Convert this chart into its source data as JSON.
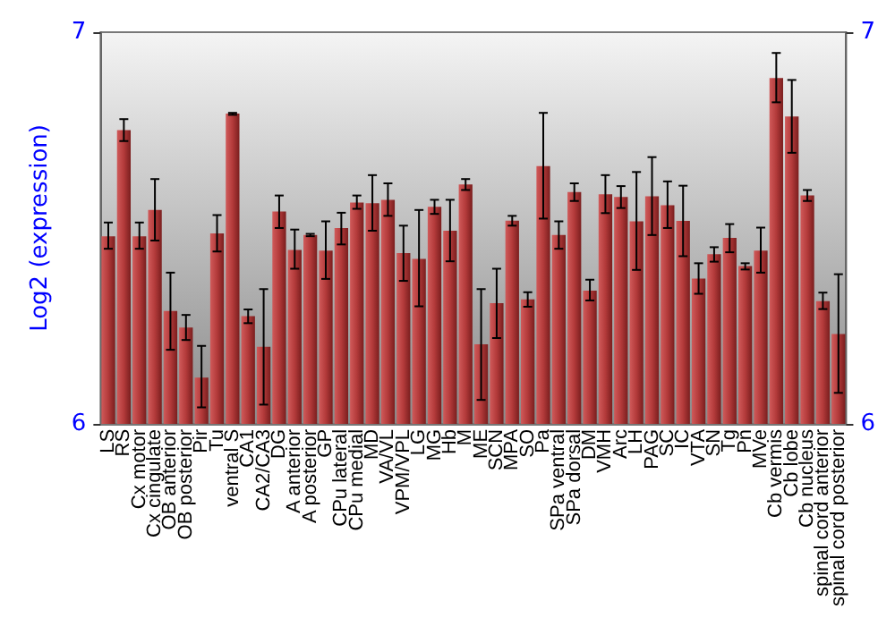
{
  "chart_data": {
    "type": "bar",
    "ylabel": "Log2 (expression)",
    "categories": [
      "LS",
      "RS",
      "Cx motor",
      "Cx cingulate",
      "OB anterior",
      "OB posterior",
      "Pir",
      "Tu",
      "ventral S",
      "CA1",
      "CA2/CA3",
      "DG",
      "A anterior",
      "A posterior",
      "GP",
      "CPu lateral",
      "CPu medial",
      "MD",
      "VA/VL",
      "VPM/VPL",
      "LG",
      "MG",
      "Hb",
      "M",
      "ME",
      "SCN",
      "MPA",
      "SO",
      "Pa",
      "SPa ventral",
      "SPa dorsal",
      "DM",
      "VMH",
      "Arc",
      "LH",
      "PAG",
      "SC",
      "IC",
      "VTA",
      "SN",
      "Tg",
      "Pn",
      "MVe",
      "Cb vermis",
      "Cb lobe",
      "Cb nucleus",
      "spinal cord anterior",
      "spinal cord posterior"
    ],
    "values": [
      6.479,
      6.75,
      6.479,
      6.546,
      6.288,
      6.246,
      6.118,
      6.486,
      6.792,
      6.275,
      6.197,
      6.542,
      6.444,
      6.482,
      6.442,
      6.5,
      6.565,
      6.563,
      6.572,
      6.436,
      6.421,
      6.554,
      6.493,
      6.611,
      6.203,
      6.308,
      6.519,
      6.318,
      6.658,
      6.482,
      6.592,
      6.34,
      6.586,
      6.579,
      6.517,
      6.581,
      6.558,
      6.518,
      6.371,
      6.433,
      6.475,
      6.403,
      6.442,
      6.883,
      6.785,
      6.583,
      6.313,
      6.229
    ],
    "errors": [
      [
        6.447,
        6.514
      ],
      [
        6.722,
        6.778
      ],
      [
        6.447,
        6.514
      ],
      [
        6.468,
        6.625
      ],
      [
        6.189,
        6.386
      ],
      [
        6.214,
        6.278
      ],
      [
        6.042,
        6.199
      ],
      [
        6.44,
        6.533
      ],
      [
        6.789,
        6.794
      ],
      [
        6.257,
        6.292
      ],
      [
        6.049,
        6.344
      ],
      [
        6.5,
        6.583
      ],
      [
        6.396,
        6.496
      ],
      [
        6.479,
        6.485
      ],
      [
        6.37,
        6.517
      ],
      [
        6.458,
        6.539
      ],
      [
        6.549,
        6.583
      ],
      [
        6.493,
        6.635
      ],
      [
        6.531,
        6.614
      ],
      [
        6.365,
        6.506
      ],
      [
        6.3,
        6.546
      ],
      [
        6.536,
        6.572
      ],
      [
        6.415,
        6.572
      ],
      [
        6.597,
        6.625
      ],
      [
        6.061,
        6.344
      ],
      [
        6.219,
        6.396
      ],
      [
        6.506,
        6.531
      ],
      [
        6.299,
        6.336
      ],
      [
        6.524,
        6.794
      ],
      [
        6.447,
        6.517
      ],
      [
        6.569,
        6.614
      ],
      [
        6.315,
        6.368
      ],
      [
        6.538,
        6.635
      ],
      [
        6.551,
        6.607
      ],
      [
        6.393,
        6.643
      ],
      [
        6.482,
        6.681
      ],
      [
        6.5,
        6.619
      ],
      [
        6.428,
        6.608
      ],
      [
        6.332,
        6.41
      ],
      [
        6.414,
        6.451
      ],
      [
        6.438,
        6.51
      ],
      [
        6.394,
        6.41
      ],
      [
        6.386,
        6.501
      ],
      [
        6.821,
        6.947
      ],
      [
        6.692,
        6.878
      ],
      [
        6.569,
        6.597
      ],
      [
        6.293,
        6.335
      ],
      [
        6.079,
        6.382
      ]
    ],
    "color": "#b33a3a",
    "ylim": [
      6,
      7
    ],
    "yticks": [
      6,
      7
    ],
    "y2lim": [
      6,
      7
    ],
    "y2ticks": [
      6,
      7
    ]
  }
}
